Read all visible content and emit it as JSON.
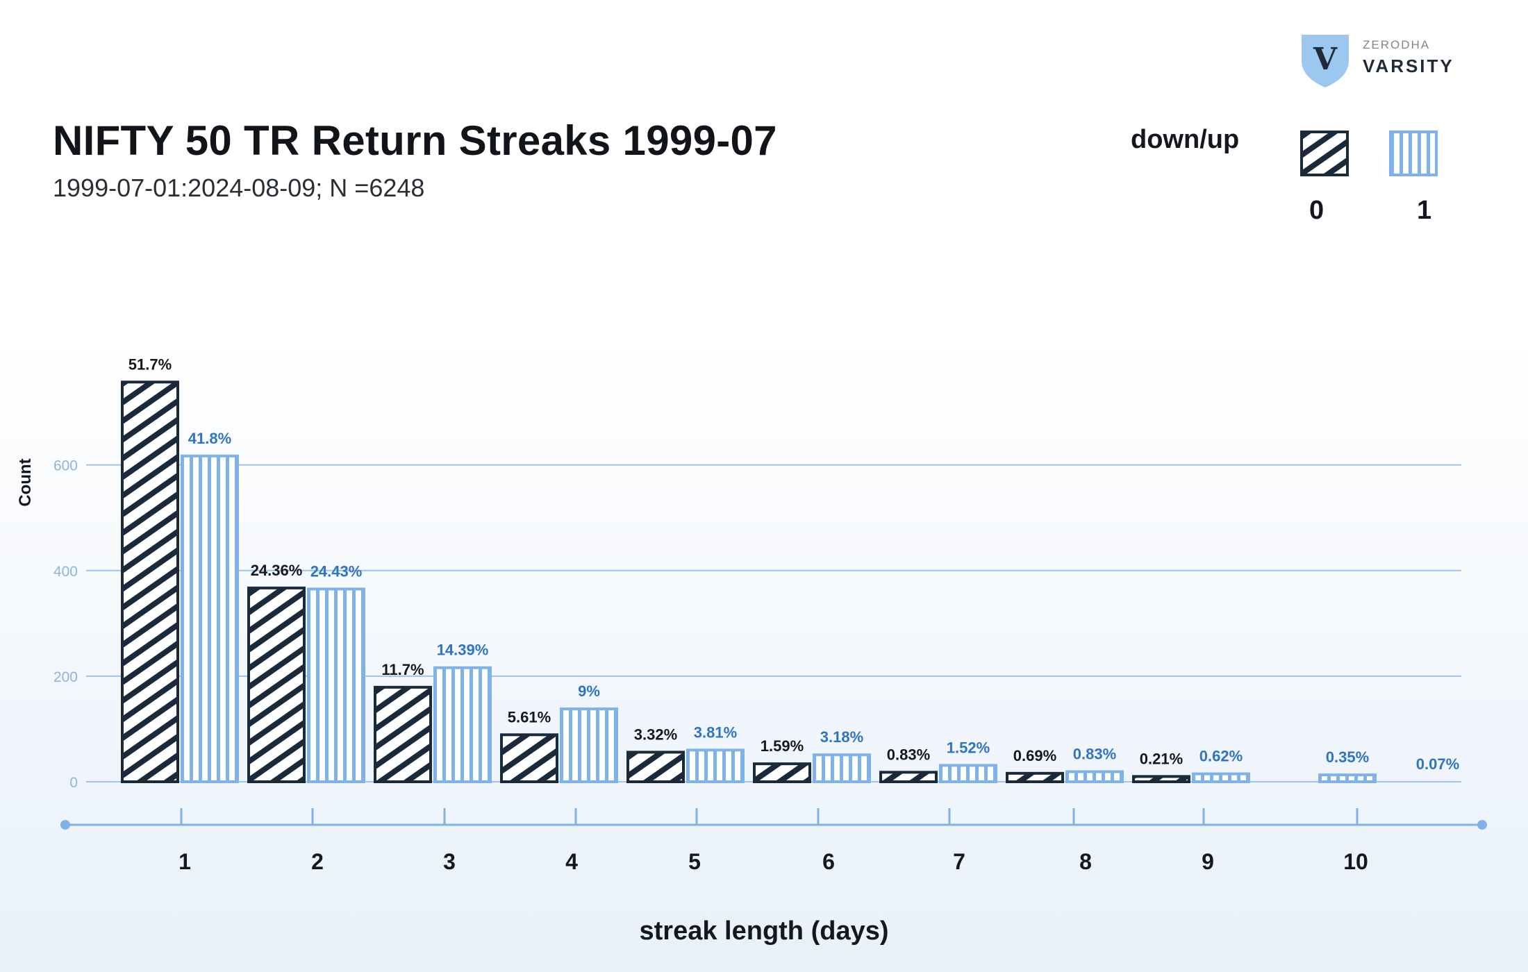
{
  "branding": {
    "small": "ZERODHA",
    "big": "VARSITY",
    "mark": "V"
  },
  "chart_data": {
    "type": "bar",
    "title": "NIFTY 50 TR Return Streaks 1999-07",
    "subtitle": "1999-07-01:2024-08-09; N =6248",
    "xlabel": "streak length (days)",
    "ylabel": "Count",
    "ylim": [
      0,
      760
    ],
    "yticks": [
      0,
      200,
      400,
      600
    ],
    "categories": [
      "1",
      "2",
      "3",
      "4",
      "5",
      "6",
      "7",
      "8",
      "9",
      "10"
    ],
    "legend": {
      "title": "down/up",
      "position": "top-right"
    },
    "series": [
      {
        "name": "0",
        "color": "#1b2a3a",
        "values": [
          757,
          367,
          179,
          89,
          56,
          34,
          18,
          16,
          10,
          0
        ],
        "labels": [
          "51.7%",
          "24.36%",
          "11.7%",
          "5.61%",
          "3.32%",
          "1.59%",
          "0.83%",
          "0.69%",
          "0.21%",
          ""
        ]
      },
      {
        "name": "1",
        "color": "#7fb2e8",
        "values": [
          617,
          365,
          216,
          138,
          60,
          51,
          31,
          19,
          15,
          13
        ],
        "labels": [
          "41.8%",
          "24.43%",
          "14.39%",
          "9%",
          "3.81%",
          "3.18%",
          "1.52%",
          "0.83%",
          "0.62%",
          "0.35%"
        ]
      }
    ],
    "extra_label": "0.07%"
  }
}
